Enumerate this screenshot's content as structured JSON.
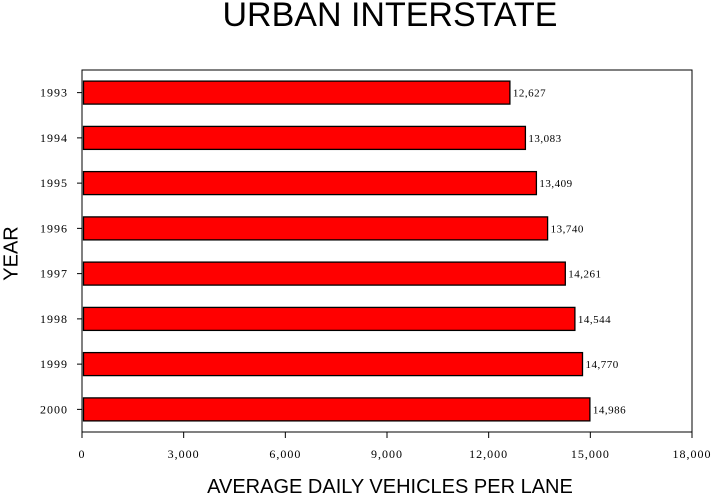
{
  "chart_data": {
    "type": "bar",
    "orientation": "horizontal",
    "title": "URBAN INTERSTATE",
    "xlabel": "AVERAGE DAILY VEHICLES PER LANE",
    "ylabel": "YEAR",
    "categories": [
      "1993",
      "1994",
      "1995",
      "1996",
      "1997",
      "1998",
      "1999",
      "2000"
    ],
    "values": [
      12627,
      13083,
      13409,
      13740,
      14261,
      14544,
      14770,
      14986
    ],
    "value_labels": [
      "12,627",
      "13,083",
      "13,409",
      "13,740",
      "14,261",
      "14,544",
      "14,770",
      "14,986"
    ],
    "xlim": [
      0,
      18000
    ],
    "xticks": [
      0,
      3000,
      6000,
      9000,
      12000,
      15000,
      18000
    ],
    "xtick_labels": [
      "0",
      "3,000",
      "6,000",
      "9,000",
      "12,000",
      "15,000",
      "18,000"
    ],
    "bar_color": "#ff0000",
    "grid": false,
    "legend": "none"
  }
}
